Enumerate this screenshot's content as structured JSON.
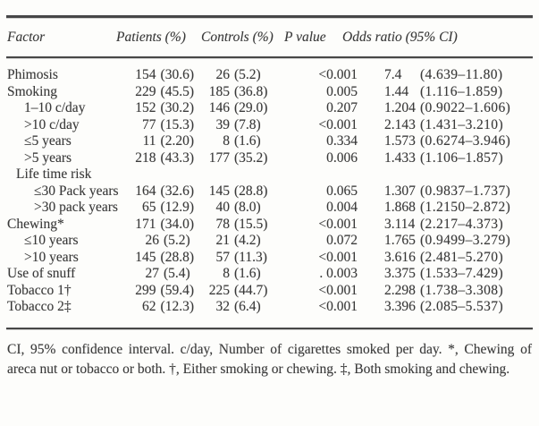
{
  "table": {
    "columns": {
      "factor": "Factor",
      "patients": "Patients (%)",
      "controls": "Controls (%)",
      "pvalue": "P value",
      "odds": "Odds ratio (95% CI)"
    },
    "rows": [
      {
        "factor": "Phimosis",
        "indent": 0,
        "patients_n": "154",
        "patients_pct": "(30.6)",
        "controls_n": "26",
        "controls_pct": "(5.2)",
        "pvalue": "<0.001",
        "or": "7.4",
        "ci": "(4.639–11.80)"
      },
      {
        "factor": "Smoking",
        "indent": 0,
        "patients_n": "229",
        "patients_pct": "(45.5)",
        "controls_n": "185",
        "controls_pct": "(36.8)",
        "pvalue": "0.005",
        "or": "1.44",
        "ci": "(1.116–1.859)"
      },
      {
        "factor": "1–10 c/day",
        "indent": 2,
        "patients_n": "152",
        "patients_pct": "(30.2)",
        "controls_n": "146",
        "controls_pct": "(29.0)",
        "pvalue": "0.207",
        "or": "1.204",
        "ci": "(0.9022–1.606)"
      },
      {
        "factor": ">10 c/day",
        "indent": 2,
        "patients_n": "77",
        "patients_pct": "(15.3)",
        "controls_n": "39",
        "controls_pct": "(7.8)",
        "pvalue": "<0.001",
        "or": "2.143",
        "ci": "(1.431–3.210)"
      },
      {
        "factor": "≤5 years",
        "indent": 2,
        "patients_n": "11",
        "patients_pct": "(2.20)",
        "controls_n": "8",
        "controls_pct": "(1.6)",
        "pvalue": "0.334",
        "or": "1.573",
        "ci": "(0.6274–3.946)"
      },
      {
        "factor": ">5 years",
        "indent": 2,
        "patients_n": "218",
        "patients_pct": "(43.3)",
        "controls_n": "177",
        "controls_pct": "(35.2)",
        "pvalue": "0.006",
        "or": "1.433",
        "ci": "(1.106–1.857)"
      },
      {
        "factor": "Life time risk",
        "indent": 1,
        "patients_n": "",
        "patients_pct": "",
        "controls_n": "",
        "controls_pct": "",
        "pvalue": "",
        "or": "",
        "ci": ""
      },
      {
        "factor": "≤30 Pack years",
        "indent": 3,
        "patients_n": "164",
        "patients_pct": "(32.6)",
        "controls_n": "145",
        "controls_pct": "(28.8)",
        "pvalue": "0.065",
        "or": "1.307",
        "ci": "(0.9837–1.737)"
      },
      {
        "factor": ">30 pack years",
        "indent": 3,
        "patients_n": "65",
        "patients_pct": "(12.9)",
        "controls_n": "40",
        "controls_pct": "(8.0)",
        "pvalue": "0.004",
        "or": "1.868",
        "ci": "(1.2150–2.872)"
      },
      {
        "factor": "Chewing*",
        "indent": 0,
        "patients_n": "171",
        "patients_pct": "(34.0)",
        "controls_n": "78",
        "controls_pct": "(15.5)",
        "pvalue": "<0.001",
        "or": "3.114",
        "ci": "(2.217–4.373)"
      },
      {
        "factor": "≤10 years",
        "indent": 2,
        "patients_n": "26",
        "patients_pct": "(5.2)",
        "controls_n": "21",
        "controls_pct": "(4.2)",
        "pvalue": "0.072",
        "or": "1.765",
        "ci": "(0.9499–3.279)"
      },
      {
        "factor": ">10 years",
        "indent": 2,
        "patients_n": "145",
        "patients_pct": "(28.8)",
        "controls_n": "57",
        "controls_pct": "(11.3)",
        "pvalue": "<0.001",
        "or": "3.616",
        "ci": "(2.481–5.270)"
      },
      {
        "factor": "Use of snuff",
        "indent": 0,
        "patients_n": "27",
        "patients_pct": "(5.4)",
        "controls_n": "8",
        "controls_pct": "(1.6)",
        "pvalue": ". 0.003",
        "or": "3.375",
        "ci": "(1.533–7.429)"
      },
      {
        "factor": "Tobacco 1†",
        "indent": 0,
        "patients_n": "299",
        "patients_pct": "(59.4)",
        "controls_n": "225",
        "controls_pct": "(44.7)",
        "pvalue": "<0.001",
        "or": "2.298",
        "ci": "(1.738–3.308)"
      },
      {
        "factor": "Tobacco 2‡",
        "indent": 0,
        "patients_n": "62",
        "patients_pct": "(12.3)",
        "controls_n": "32",
        "controls_pct": "(6.4)",
        "pvalue": "<0.001",
        "or": "3.396",
        "ci": "(2.085–5.537)"
      }
    ]
  },
  "footnote": "CI, 95% confidence interval. c/day, Number of cigarettes smoked per day. *, Chewing of areca nut or tobacco or both. †, Either smoking or chewing. ‡, Both smoking and chewing."
}
